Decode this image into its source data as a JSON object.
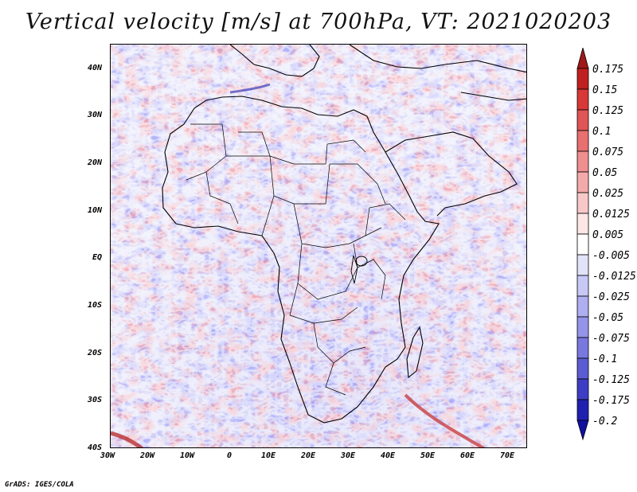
{
  "title": "Vertical velocity [m/s] at 700hPa, VT: 2021020203",
  "map": {
    "lat_labels": [
      "40N",
      "30N",
      "20N",
      "10N",
      "EQ",
      "10S",
      "20S",
      "30S",
      "40S"
    ],
    "lon_labels": [
      "30W",
      "20W",
      "10W",
      "0",
      "10E",
      "20E",
      "30E",
      "40E",
      "50E",
      "60E",
      "70E"
    ],
    "lat_range": [
      -40,
      45
    ],
    "lon_range": [
      -30,
      75
    ],
    "region": "Africa"
  },
  "colorbar": {
    "labels": [
      "0.175",
      "0.15",
      "0.125",
      "0.1",
      "0.075",
      "0.05",
      "0.025",
      "0.0125",
      "0.005",
      "-0.005",
      "-0.0125",
      "-0.025",
      "-0.05",
      "-0.075",
      "-0.1",
      "-0.125",
      "-0.175",
      "-0.2"
    ],
    "colors": [
      "#a01818",
      "#c02020",
      "#d83838",
      "#e05555",
      "#e87070",
      "#ef8f8f",
      "#f4aaaa",
      "#f8c8c8",
      "#fce6e6",
      "#ffffff",
      "#e2e2fb",
      "#c8c8f6",
      "#aeaef0",
      "#9494e8",
      "#7878de",
      "#5c5cd2",
      "#3e3ec4",
      "#2020b0",
      "#1010a0"
    ]
  },
  "credit": "GrADS: IGES/COLA"
}
